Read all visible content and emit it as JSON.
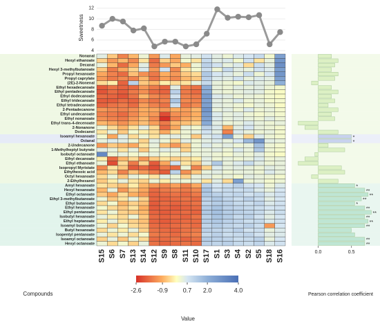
{
  "chart_data": [
    {
      "type": "line",
      "ylabel": "Sweetness",
      "color": "#9a9a9a",
      "values": [
        8.7,
        10.0,
        9.5,
        7.8,
        8.2,
        4.8,
        5.7,
        5.7,
        4.8,
        5.2,
        7.2,
        11.8,
        10.2,
        10.4,
        10.3,
        10.7,
        5.2,
        7.5
      ],
      "ylim": [
        3.5,
        12.9
      ],
      "yticks": [
        4,
        6,
        8,
        10,
        12
      ],
      "grid": true
    },
    {
      "type": "heatmap",
      "xlabel": "Compounds",
      "legend_title": "Value",
      "columns": [
        "S15",
        "S6",
        "S7",
        "S13",
        "S14",
        "S12",
        "S9",
        "S8",
        "S11",
        "S10",
        "S17",
        "S1",
        "S3",
        "S4",
        "S2",
        "S5",
        "S18",
        "S16"
      ],
      "rows": [
        "Nonanal",
        "Hexyl ethanoate",
        "Decanal",
        "Hexyl 3-methylbutanoate",
        "Propyl hexanoate",
        "Propyl caprylate",
        "(2E)-2-Nonenal",
        "Ethyl hexadecanoate",
        "Ethyl pentadecanoate",
        "Ethyl dodecanoate",
        "Ethyl tridecanoate",
        "Ethyl tetradecanoate",
        "2-Pentadecanone",
        "Ethyl undecanoate",
        "Ethyl nonanoate",
        "Ethyl trans-4-decenoate",
        "2-Nonanone",
        "Dodecanol",
        "Isoamyl hexanoate",
        "Octanal",
        "2-Undecanone",
        "1-Methylheptyl butyrate",
        "Isobutyl octanoate",
        "Ethyl decanoate",
        "Ethyl ethanoate",
        "Isopropyl Myristate",
        "Ethylhexoic acid",
        "Octyl hexanoate",
        "2-Ethylhexanol",
        "Amyl hexanoate",
        "Hexyl hexanoate",
        "Ethyl octanoate",
        "Ethyl 3-methylbutanoate",
        "Ethyl butanoate",
        "Ethyl hexanoate",
        "Ethyl pentanoate",
        "Isobutyl hexanoate",
        "Ethyl heptanoate",
        "Isoamyl butanoate",
        "Butyl hexanoate",
        "Isopentyl pentanoate",
        "Isoamyl octanoate",
        "Hexyl octanoate"
      ],
      "values": [
        [
          0.5,
          -0.6,
          -1.5,
          -0.8,
          0.3,
          -1.2,
          0.6,
          -1.0,
          0.4,
          0.5,
          0.8,
          0.5,
          0.3,
          0.6,
          0.7,
          1.0,
          0.2,
          2.5
        ],
        [
          -0.5,
          -1.2,
          -0.8,
          -1.4,
          -0.3,
          -1.8,
          -0.5,
          -1.0,
          0.2,
          -0.3,
          1.0,
          0.5,
          0.6,
          0.2,
          0.8,
          -0.3,
          0.4,
          2.8
        ],
        [
          0.4,
          -0.8,
          -1.8,
          -1.0,
          0.5,
          -1.6,
          -1.2,
          -0.6,
          -0.9,
          0.3,
          1.2,
          0.8,
          0.4,
          0.6,
          -0.4,
          0.9,
          0.5,
          3.0
        ],
        [
          -0.6,
          -1.6,
          -1.0,
          -0.5,
          0.6,
          -1.2,
          0.8,
          -1.4,
          -0.3,
          0.2,
          0.9,
          0.3,
          1.0,
          0.5,
          0.4,
          0.8,
          0.6,
          2.6
        ],
        [
          -1.0,
          -1.5,
          -1.8,
          -0.7,
          -1.3,
          -1.6,
          -0.9,
          -1.2,
          -0.6,
          -0.4,
          1.4,
          0.7,
          0.6,
          0.4,
          0.9,
          0.3,
          0.7,
          2.8
        ],
        [
          -1.2,
          -1.6,
          -1.4,
          -1.5,
          -0.8,
          -1.7,
          -1.1,
          -1.4,
          -0.8,
          -0.6,
          1.2,
          0.6,
          0.5,
          0.8,
          0.4,
          0.6,
          0.5,
          2.5
        ],
        [
          -0.4,
          -0.2,
          -1.9,
          1.2,
          -0.6,
          -0.8,
          -0.2,
          -0.4,
          -0.3,
          0.4,
          1.0,
          0.4,
          0.3,
          0.2,
          0.6,
          0.5,
          0.4,
          2.0
        ],
        [
          -2.0,
          -1.7,
          -1.9,
          -1.8,
          -1.2,
          -1.6,
          -1.9,
          0.5,
          -1.5,
          -1.7,
          2.0,
          0.4,
          0.3,
          0.5,
          0.4,
          0.5,
          0.3,
          0.2
        ],
        [
          -2.1,
          -1.8,
          -2.0,
          -1.6,
          -1.3,
          -1.8,
          -1.9,
          1.2,
          -1.6,
          -1.8,
          2.2,
          0.4,
          0.3,
          0.4,
          0.5,
          0.5,
          0.2,
          0.1
        ],
        [
          -1.8,
          -1.9,
          -2.1,
          -1.7,
          -0.8,
          -1.4,
          -1.6,
          0.8,
          -1.5,
          -1.6,
          2.6,
          0.6,
          0.5,
          0.3,
          0.4,
          0.3,
          0.2,
          0.1
        ],
        [
          -2.0,
          -2.0,
          -1.8,
          -1.9,
          -1.4,
          -1.7,
          -1.5,
          1.5,
          -1.4,
          -1.5,
          2.4,
          0.5,
          0.4,
          0.6,
          0.3,
          0.4,
          0.2,
          0.2
        ],
        [
          -1.9,
          -1.7,
          -1.6,
          -1.8,
          -1.1,
          -1.5,
          -1.7,
          0.9,
          -1.6,
          -1.4,
          2.5,
          0.5,
          0.4,
          0.3,
          0.2,
          0.4,
          0.3,
          0.1
        ],
        [
          -1.2,
          -1.4,
          -1.5,
          -1.3,
          -0.9,
          -1.0,
          -1.2,
          -0.9,
          -1.1,
          -0.8,
          2.8,
          0.4,
          0.5,
          0.3,
          0.6,
          0.3,
          0.4,
          0.2
        ],
        [
          -1.5,
          -1.6,
          -1.8,
          -1.4,
          -1.0,
          -1.2,
          -2.2,
          -1.3,
          -1.2,
          -0.9,
          2.6,
          0.6,
          0.4,
          0.5,
          0.3,
          0.2,
          0.3,
          0.2
        ],
        [
          -1.3,
          -1.5,
          -1.6,
          -1.2,
          -0.8,
          -1.4,
          -2.6,
          -1.5,
          -1.0,
          -0.8,
          2.4,
          0.6,
          0.4,
          0.5,
          0.4,
          0.3,
          0.5,
          0.3
        ],
        [
          -0.8,
          -1.0,
          -1.3,
          -0.9,
          -0.7,
          -1.1,
          -1.6,
          -0.8,
          -0.7,
          -0.5,
          2.2,
          0.5,
          0.3,
          0.4,
          0.6,
          0.4,
          0.3,
          0.4
        ],
        [
          0.3,
          -0.4,
          -0.8,
          -0.3,
          0.5,
          -0.4,
          -1.8,
          -1.0,
          0.4,
          0.2,
          1.2,
          0.6,
          -0.8,
          0.5,
          0.7,
          0.4,
          0.3,
          0.2
        ],
        [
          -0.3,
          0.4,
          -0.6,
          0.2,
          -0.2,
          -0.4,
          -1.0,
          -0.3,
          0.3,
          0.4,
          0.8,
          0.5,
          -1.5,
          0.6,
          0.4,
          0.3,
          0.4,
          0.2
        ],
        [
          0.2,
          -1.0,
          0.5,
          -0.4,
          0.3,
          -0.3,
          0.4,
          0.5,
          0.3,
          -0.6,
          0.6,
          0.8,
          2.5,
          0.4,
          -0.5,
          0.6,
          0.3,
          0.2
        ],
        [
          0.4,
          0.6,
          0.5,
          0.3,
          -0.5,
          0.5,
          0.3,
          -0.4,
          0.5,
          0.3,
          0.5,
          0.6,
          0.4,
          0.7,
          1.8,
          2.8,
          0.5,
          0.4
        ],
        [
          -1.2,
          -0.6,
          -0.8,
          -1.0,
          -0.3,
          0.4,
          -0.7,
          -1.2,
          -0.6,
          0.3,
          0.6,
          0.4,
          0.5,
          0.3,
          0.4,
          1.6,
          0.3,
          0.2
        ],
        [
          0.5,
          0.4,
          -0.3,
          0.4,
          -0.6,
          0.3,
          0.5,
          0.4,
          -0.5,
          0.3,
          0.4,
          0.5,
          0.3,
          0.6,
          0.4,
          1.4,
          0.3,
          0.2
        ],
        [
          3.2,
          0.3,
          0.4,
          0.2,
          0.3,
          0.4,
          0.2,
          0.3,
          0.4,
          0.3,
          0.4,
          0.3,
          0.2,
          0.4,
          0.3,
          0.5,
          0.2,
          0.1
        ],
        [
          -0.2,
          -1.8,
          -0.8,
          -0.4,
          -1.2,
          -0.6,
          -0.3,
          -0.5,
          -0.4,
          -0.2,
          0.5,
          0.3,
          0.4,
          0.3,
          0.4,
          0.6,
          0.3,
          0.4
        ],
        [
          0.3,
          -2.2,
          -0.4,
          -1.6,
          -0.5,
          -2.0,
          -1.0,
          0.8,
          -0.3,
          -0.6,
          0.5,
          1.4,
          0.4,
          0.6,
          1.0,
          0.5,
          0.3,
          0.4
        ],
        [
          -1.4,
          -0.3,
          -0.6,
          -2.0,
          -1.8,
          -2.2,
          -1.6,
          -1.8,
          0.3,
          -1.5,
          -0.5,
          0.6,
          0.4,
          0.5,
          0.4,
          0.3,
          0.5,
          0.4
        ],
        [
          -0.8,
          -0.4,
          -1.5,
          -0.7,
          -1.2,
          -1.6,
          -2.0,
          1.2,
          -1.3,
          -0.6,
          0.4,
          0.5,
          0.3,
          0.4,
          0.4,
          0.3,
          0.6,
          0.4
        ],
        [
          -0.4,
          0.3,
          -0.6,
          0.4,
          0.2,
          -0.3,
          0.5,
          0.3,
          -0.5,
          0.4,
          0.5,
          0.3,
          0.4,
          0.2,
          0.5,
          0.4,
          0.3,
          0.2
        ],
        [
          -0.6,
          -0.2,
          0.4,
          -0.3,
          -0.5,
          0.3,
          -0.2,
          0.4,
          0.3,
          0.4,
          -0.3,
          0.5,
          -0.4,
          2.5,
          0.3,
          0.4,
          0.2,
          0.3
        ],
        [
          -0.3,
          -0.5,
          -0.7,
          -0.2,
          -0.8,
          -1.2,
          -1.4,
          -1.1,
          -1.5,
          -1.0,
          1.2,
          0.7,
          0.9,
          1.2,
          0.8,
          0.7,
          0.3,
          0.6
        ],
        [
          -0.8,
          0.4,
          -1.2,
          -0.6,
          -1.0,
          -1.8,
          -1.6,
          -1.5,
          -1.6,
          -1.4,
          1.5,
          0.8,
          1.0,
          0.9,
          1.0,
          0.6,
          0.4,
          0.7
        ],
        [
          -0.6,
          -1.0,
          -0.4,
          -0.9,
          -1.2,
          -1.9,
          -1.8,
          -1.7,
          -1.8,
          -1.6,
          1.4,
          1.2,
          1.0,
          1.1,
          0.8,
          1.0,
          0.6,
          0.8
        ],
        [
          0.3,
          -0.6,
          -0.3,
          0.4,
          -0.5,
          -1.9,
          -1.9,
          -1.8,
          -1.7,
          -1.8,
          1.2,
          1.4,
          1.1,
          0.9,
          1.2,
          0.9,
          0.5,
          0.7
        ],
        [
          -0.4,
          0.2,
          -0.8,
          -0.5,
          -0.7,
          -2.0,
          -1.8,
          -1.9,
          -1.8,
          -1.7,
          1.1,
          1.3,
          1.2,
          1.0,
          0.9,
          1.1,
          0.6,
          0.8
        ],
        [
          0.2,
          -0.4,
          -0.6,
          -0.3,
          -0.9,
          -2.0,
          -1.9,
          -2.0,
          -1.9,
          -1.8,
          1.3,
          1.5,
          1.2,
          1.1,
          1.0,
          0.9,
          0.7,
          0.8
        ],
        [
          -0.3,
          0.3,
          -0.5,
          -0.6,
          -0.8,
          -1.9,
          -2.0,
          -1.9,
          -1.8,
          -1.9,
          1.4,
          1.6,
          1.3,
          1.2,
          1.1,
          1.0,
          0.6,
          0.9
        ],
        [
          0.4,
          -0.2,
          -0.4,
          0.3,
          -0.6,
          -1.8,
          -1.9,
          -1.8,
          -1.9,
          -1.7,
          1.2,
          1.5,
          1.3,
          1.0,
          1.2,
          0.8,
          0.5,
          0.7
        ],
        [
          -0.2,
          0.4,
          -0.3,
          -0.5,
          -0.7,
          -1.9,
          -2.0,
          -1.9,
          -1.8,
          -1.8,
          1.3,
          1.4,
          1.2,
          1.1,
          0.9,
          1.0,
          0.6,
          0.8
        ],
        [
          0.3,
          -0.5,
          0.2,
          -0.4,
          -0.6,
          -1.8,
          -1.9,
          -1.8,
          -1.7,
          -1.8,
          1.1,
          1.3,
          1.1,
          1.0,
          1.2,
          0.9,
          -1.2,
          0.7
        ],
        [
          -0.4,
          0.3,
          -0.2,
          0.4,
          -0.5,
          -1.7,
          -1.8,
          -1.9,
          -1.7,
          -1.6,
          1.2,
          1.1,
          1.0,
          1.2,
          0.8,
          0.9,
          0.4,
          0.6
        ],
        [
          0.4,
          -0.3,
          0.3,
          -0.4,
          0.2,
          -1.6,
          -1.7,
          -1.8,
          -1.6,
          -1.5,
          1.0,
          1.2,
          0.9,
          1.0,
          1.1,
          0.8,
          0.5,
          0.6
        ],
        [
          -0.5,
          0.4,
          -0.6,
          0.3,
          -0.4,
          -1.8,
          -1.8,
          -1.7,
          -1.9,
          -1.7,
          1.3,
          1.2,
          1.1,
          0.9,
          1.0,
          1.2,
          0.4,
          0.7
        ],
        [
          0.3,
          -0.4,
          0.2,
          -0.5,
          0.4,
          -1.7,
          -1.9,
          -1.8,
          -1.7,
          -1.8,
          1.2,
          1.1,
          1.2,
          1.0,
          0.9,
          1.1,
          0.6,
          0.8
        ]
      ],
      "zlim": [
        -2.6,
        4.0
      ],
      "colorscale": [
        [
          -2.6,
          "#d73027"
        ],
        [
          -0.9,
          "#fdae61"
        ],
        [
          0,
          "#ffffbf"
        ],
        [
          0.7,
          "#d6e6f2"
        ],
        [
          2.0,
          "#8fb0d8"
        ],
        [
          4.0,
          "#4a6fb5"
        ]
      ],
      "legend_ticks": [
        -2.6,
        -0.9,
        0.7,
        {
          "value": 2,
          "label": "2.0"
        },
        {
          "value": 4,
          "label": "4.0"
        }
      ]
    },
    {
      "type": "barh",
      "xlabel": "Pearson correlation coefficient",
      "values": [
        0.2,
        0.3,
        0.25,
        0.2,
        0.3,
        0.25,
        -0.1,
        0.2,
        0.3,
        0.2,
        0.25,
        0.15,
        0.3,
        0.2,
        0.25,
        -0.3,
        -0.2,
        0.3,
        0.5,
        0.5,
        0.15,
        0.4,
        -0.05,
        -0.2,
        -0.3,
        0.35,
        0.4,
        -0.1,
        0.3,
        0.55,
        0.7,
        0.75,
        0.65,
        0.55,
        0.7,
        0.8,
        0.7,
        0.75,
        0.7,
        0.5,
        0.55,
        0.7,
        0.7
      ],
      "significance": [
        null,
        null,
        null,
        null,
        null,
        null,
        null,
        null,
        null,
        null,
        null,
        null,
        null,
        null,
        null,
        null,
        null,
        null,
        "*",
        "*",
        null,
        null,
        null,
        null,
        null,
        null,
        null,
        null,
        null,
        "*",
        "**",
        "**",
        "**",
        "*",
        "**",
        "**",
        "**",
        "**",
        "**",
        null,
        null,
        "**",
        "**"
      ],
      "colors": [
        "#dcf0c4",
        "#c8d2ee",
        "#bfe6d4"
      ],
      "color_groups": [
        0,
        0,
        0,
        0,
        0,
        0,
        0,
        0,
        0,
        0,
        0,
        0,
        0,
        0,
        0,
        0,
        0,
        0,
        1,
        1,
        0,
        0,
        0,
        0,
        0,
        0,
        0,
        0,
        0,
        2,
        2,
        2,
        2,
        2,
        2,
        2,
        2,
        2,
        2,
        2,
        2,
        2,
        2
      ],
      "xlim": [
        -0.4,
        0.93
      ],
      "xticks": [
        {
          "value": 0,
          "label": "0.0"
        },
        0.5
      ]
    }
  ]
}
